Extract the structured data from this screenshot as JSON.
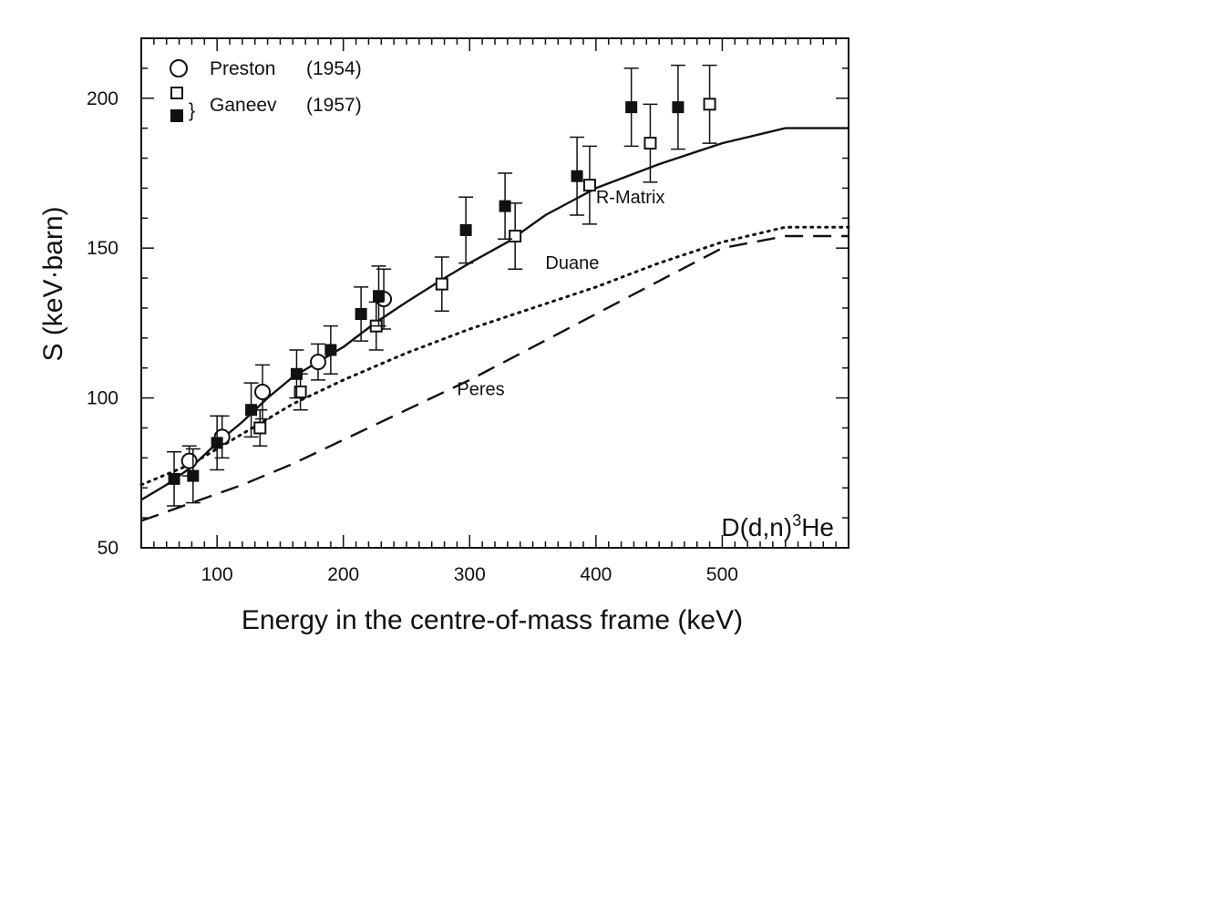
{
  "chart_data": {
    "type": "scatter",
    "xlabel": "Energy in the centre-of-mass frame (keV)",
    "ylabel": "S  (keV·barn)",
    "xlim": [
      40,
      600
    ],
    "ylim": [
      50,
      220
    ],
    "xticks": [
      100,
      200,
      300,
      400,
      500
    ],
    "xtick_labels": [
      "100",
      "200",
      "300",
      "400",
      "500"
    ],
    "yticks": [
      50,
      100,
      150,
      200
    ],
    "ytick_labels": [
      "50",
      "100",
      "150",
      "200"
    ],
    "grid": false,
    "legend_position": "top-left",
    "annotation": {
      "reaction_main": "D(d,n)",
      "reaction_sup": "3",
      "reaction_tail": "He"
    },
    "legend": {
      "entries": [
        {
          "label": "Preston",
          "year": "(1954)",
          "marker": "circle-open"
        },
        {
          "label": "",
          "year": "",
          "marker": "square-open"
        },
        {
          "label": "Ganeev",
          "year": "(1957)",
          "marker": "square-filled"
        }
      ],
      "brace": "}"
    },
    "series": [
      {
        "name": "Preston (1954)",
        "marker": "circle-open",
        "points": [
          {
            "x": 78,
            "y": 79,
            "err": 5
          },
          {
            "x": 104,
            "y": 87,
            "err": 7
          },
          {
            "x": 136,
            "y": 102,
            "err": 9
          },
          {
            "x": 180,
            "y": 112,
            "err": 6
          },
          {
            "x": 232,
            "y": 133,
            "err": 10
          }
        ]
      },
      {
        "name": "Ganeev (1957)",
        "marker": "square-open",
        "points": [
          {
            "x": 134,
            "y": 90,
            "err": 6
          },
          {
            "x": 166,
            "y": 102,
            "err": 6
          },
          {
            "x": 226,
            "y": 124,
            "err": 8
          },
          {
            "x": 278,
            "y": 138,
            "err": 9
          },
          {
            "x": 336,
            "y": 154,
            "err": 11
          },
          {
            "x": 395,
            "y": 171,
            "err": 13
          },
          {
            "x": 443,
            "y": 185,
            "err": 13
          },
          {
            "x": 490,
            "y": 198,
            "err": 13
          }
        ]
      },
      {
        "name": "Ganeev (1957)",
        "marker": "square-filled",
        "points": [
          {
            "x": 66,
            "y": 73,
            "err": 9
          },
          {
            "x": 81,
            "y": 74,
            "err": 9
          },
          {
            "x": 100,
            "y": 85,
            "err": 9
          },
          {
            "x": 127,
            "y": 96,
            "err": 9
          },
          {
            "x": 163,
            "y": 108,
            "err": 8
          },
          {
            "x": 190,
            "y": 116,
            "err": 8
          },
          {
            "x": 214,
            "y": 128,
            "err": 9
          },
          {
            "x": 228,
            "y": 134,
            "err": 10
          },
          {
            "x": 297,
            "y": 156,
            "err": 11
          },
          {
            "x": 328,
            "y": 164,
            "err": 11
          },
          {
            "x": 385,
            "y": 174,
            "err": 13
          },
          {
            "x": 428,
            "y": 197,
            "err": 13
          },
          {
            "x": 465,
            "y": 197,
            "err": 14
          }
        ]
      }
    ],
    "curves": [
      {
        "name": "R-Matrix",
        "style": "solid",
        "label_at": [
          400,
          165
        ],
        "points": [
          [
            40,
            66
          ],
          [
            60,
            71
          ],
          [
            80,
            77
          ],
          [
            100,
            85
          ],
          [
            120,
            92
          ],
          [
            140,
            100
          ],
          [
            160,
            107
          ],
          [
            180,
            112
          ],
          [
            200,
            117
          ],
          [
            225,
            125
          ],
          [
            250,
            132
          ],
          [
            280,
            140
          ],
          [
            300,
            145
          ],
          [
            330,
            152
          ],
          [
            360,
            161
          ],
          [
            400,
            170
          ],
          [
            450,
            178
          ],
          [
            500,
            185
          ],
          [
            550,
            190
          ],
          [
            600,
            190
          ]
        ]
      },
      {
        "name": "Duane",
        "style": "dotted",
        "label_at": [
          360,
          143
        ],
        "points": [
          [
            40,
            71
          ],
          [
            80,
            78
          ],
          [
            120,
            88
          ],
          [
            160,
            98
          ],
          [
            200,
            106
          ],
          [
            250,
            115
          ],
          [
            300,
            123
          ],
          [
            350,
            130
          ],
          [
            400,
            137
          ],
          [
            450,
            145
          ],
          [
            500,
            152
          ],
          [
            550,
            157
          ],
          [
            600,
            157
          ]
        ]
      },
      {
        "name": "Peres",
        "style": "dashed",
        "label_at": [
          290,
          101
        ],
        "points": [
          [
            40,
            59
          ],
          [
            80,
            65
          ],
          [
            120,
            71
          ],
          [
            160,
            78
          ],
          [
            200,
            86
          ],
          [
            250,
            96
          ],
          [
            300,
            106
          ],
          [
            350,
            117
          ],
          [
            400,
            128
          ],
          [
            450,
            139
          ],
          [
            500,
            150
          ],
          [
            550,
            154
          ],
          [
            600,
            154
          ]
        ]
      }
    ]
  }
}
